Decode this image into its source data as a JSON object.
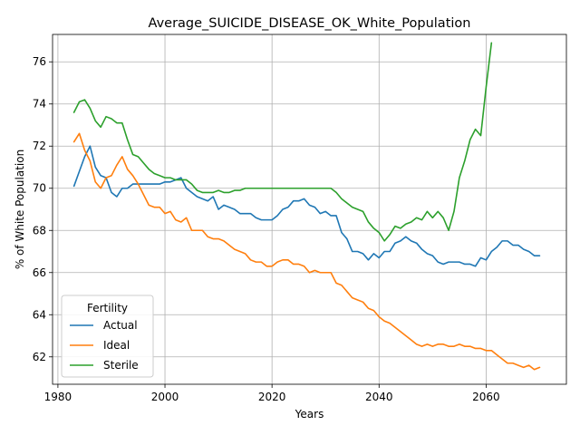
{
  "chart_data": {
    "type": "line",
    "title": "Average_SUICIDE_DISEASE_OK_White_Population",
    "xlabel": "Years",
    "ylabel": "% of White Population",
    "xlim": [
      1979,
      2075
    ],
    "ylim": [
      60.7,
      77.3
    ],
    "xticks": [
      1980,
      2000,
      2020,
      2040,
      2060
    ],
    "yticks": [
      62,
      64,
      66,
      68,
      70,
      72,
      74,
      76
    ],
    "grid": true,
    "legend": {
      "title": "Fertility",
      "position": "lower-left"
    },
    "series": [
      {
        "name": "Actual",
        "color": "#1f77b4",
        "x": [
          1983,
          1984,
          1985,
          1986,
          1987,
          1988,
          1989,
          1990,
          1991,
          1992,
          1993,
          1994,
          1995,
          1996,
          1997,
          1998,
          1999,
          2000,
          2001,
          2002,
          2003,
          2004,
          2005,
          2006,
          2007,
          2008,
          2009,
          2010,
          2011,
          2012,
          2013,
          2014,
          2015,
          2016,
          2017,
          2018,
          2019,
          2020,
          2021,
          2022,
          2023,
          2024,
          2025,
          2026,
          2027,
          2028,
          2029,
          2030,
          2031,
          2032,
          2033,
          2034,
          2035,
          2036,
          2037,
          2038,
          2039,
          2040,
          2041,
          2042,
          2043,
          2044,
          2045,
          2046,
          2047,
          2048,
          2049,
          2050,
          2051,
          2052,
          2053,
          2054,
          2055,
          2056,
          2057,
          2058,
          2059,
          2060,
          2061,
          2062,
          2063,
          2064,
          2065,
          2066,
          2067,
          2068,
          2069,
          2070
        ],
        "values": [
          70.1,
          70.8,
          71.5,
          72.0,
          71.0,
          70.6,
          70.5,
          69.8,
          69.6,
          70.0,
          70.0,
          70.2,
          70.2,
          70.2,
          70.2,
          70.2,
          70.2,
          70.3,
          70.3,
          70.4,
          70.5,
          70.0,
          69.8,
          69.6,
          69.5,
          69.4,
          69.6,
          69.0,
          69.2,
          69.1,
          69.0,
          68.8,
          68.8,
          68.8,
          68.6,
          68.5,
          68.5,
          68.5,
          68.7,
          69.0,
          69.1,
          69.4,
          69.4,
          69.5,
          69.2,
          69.1,
          68.8,
          68.9,
          68.7,
          68.7,
          67.9,
          67.6,
          67.0,
          67.0,
          66.9,
          66.6,
          66.9,
          66.7,
          67.0,
          67.0,
          67.4,
          67.5,
          67.7,
          67.5,
          67.4,
          67.1,
          66.9,
          66.8,
          66.5,
          66.4,
          66.5,
          66.5,
          66.5,
          66.4,
          66.4,
          66.3,
          66.7,
          66.6,
          67.0,
          67.2,
          67.5,
          67.5,
          67.3,
          67.3,
          67.1,
          67.0,
          66.8,
          66.8
        ]
      },
      {
        "name": "Ideal",
        "color": "#ff7f0e",
        "x": [
          1983,
          1984,
          1985,
          1986,
          1987,
          1988,
          1989,
          1990,
          1991,
          1992,
          1993,
          1994,
          1995,
          1996,
          1997,
          1998,
          1999,
          2000,
          2001,
          2002,
          2003,
          2004,
          2005,
          2006,
          2007,
          2008,
          2009,
          2010,
          2011,
          2012,
          2013,
          2014,
          2015,
          2016,
          2017,
          2018,
          2019,
          2020,
          2021,
          2022,
          2023,
          2024,
          2025,
          2026,
          2027,
          2028,
          2029,
          2030,
          2031,
          2032,
          2033,
          2034,
          2035,
          2036,
          2037,
          2038,
          2039,
          2040,
          2041,
          2042,
          2043,
          2044,
          2045,
          2046,
          2047,
          2048,
          2049,
          2050,
          2051,
          2052,
          2053,
          2054,
          2055,
          2056,
          2057,
          2058,
          2059,
          2060,
          2061,
          2062,
          2063,
          2064,
          2065,
          2066,
          2067,
          2068,
          2069,
          2070
        ],
        "values": [
          72.2,
          72.6,
          71.8,
          71.3,
          70.3,
          70.0,
          70.5,
          70.6,
          71.1,
          71.5,
          70.9,
          70.6,
          70.2,
          69.7,
          69.2,
          69.1,
          69.1,
          68.8,
          68.9,
          68.5,
          68.4,
          68.6,
          68.0,
          68.0,
          68.0,
          67.7,
          67.6,
          67.6,
          67.5,
          67.3,
          67.1,
          67.0,
          66.9,
          66.6,
          66.5,
          66.5,
          66.3,
          66.3,
          66.5,
          66.6,
          66.6,
          66.4,
          66.4,
          66.3,
          66.0,
          66.1,
          66.0,
          66.0,
          66.0,
          65.5,
          65.4,
          65.1,
          64.8,
          64.7,
          64.6,
          64.3,
          64.2,
          63.9,
          63.7,
          63.6,
          63.4,
          63.2,
          63.0,
          62.8,
          62.6,
          62.5,
          62.6,
          62.5,
          62.6,
          62.6,
          62.5,
          62.5,
          62.6,
          62.5,
          62.5,
          62.4,
          62.4,
          62.3,
          62.3,
          62.1,
          61.9,
          61.7,
          61.7,
          61.6,
          61.5,
          61.6,
          61.4,
          61.5
        ]
      },
      {
        "name": "Sterile",
        "color": "#2ca02c",
        "x": [
          1983,
          1984,
          1985,
          1986,
          1987,
          1988,
          1989,
          1990,
          1991,
          1992,
          1993,
          1994,
          1995,
          1996,
          1997,
          1998,
          1999,
          2000,
          2001,
          2002,
          2003,
          2004,
          2005,
          2006,
          2007,
          2008,
          2009,
          2010,
          2011,
          2012,
          2013,
          2014,
          2015,
          2016,
          2017,
          2018,
          2019,
          2020,
          2021,
          2022,
          2023,
          2024,
          2025,
          2026,
          2027,
          2028,
          2029,
          2030,
          2031,
          2032,
          2033,
          2034,
          2035,
          2036,
          2037,
          2038,
          2039,
          2040,
          2041,
          2042,
          2043,
          2044,
          2045,
          2046,
          2047,
          2048,
          2049,
          2050,
          2051,
          2052,
          2053,
          2054,
          2055,
          2056,
          2057,
          2058,
          2059,
          2060,
          2061
        ],
        "values": [
          73.6,
          74.1,
          74.2,
          73.8,
          73.2,
          72.9,
          73.4,
          73.3,
          73.1,
          73.1,
          72.3,
          71.6,
          71.5,
          71.2,
          70.9,
          70.7,
          70.6,
          70.5,
          70.5,
          70.4,
          70.4,
          70.4,
          70.2,
          69.9,
          69.8,
          69.8,
          69.8,
          69.9,
          69.8,
          69.8,
          69.9,
          69.9,
          70.0,
          70.0,
          70.0,
          70.0,
          70.0,
          70.0,
          70.0,
          70.0,
          70.0,
          70.0,
          70.0,
          70.0,
          70.0,
          70.0,
          70.0,
          70.0,
          70.0,
          69.8,
          69.5,
          69.3,
          69.1,
          69.0,
          68.9,
          68.4,
          68.1,
          67.9,
          67.5,
          67.8,
          68.2,
          68.1,
          68.3,
          68.4,
          68.6,
          68.5,
          68.9,
          68.6,
          68.9,
          68.6,
          68.0,
          68.9,
          70.5,
          71.3,
          72.3,
          72.8,
          72.5,
          74.8,
          76.9
        ]
      }
    ]
  }
}
